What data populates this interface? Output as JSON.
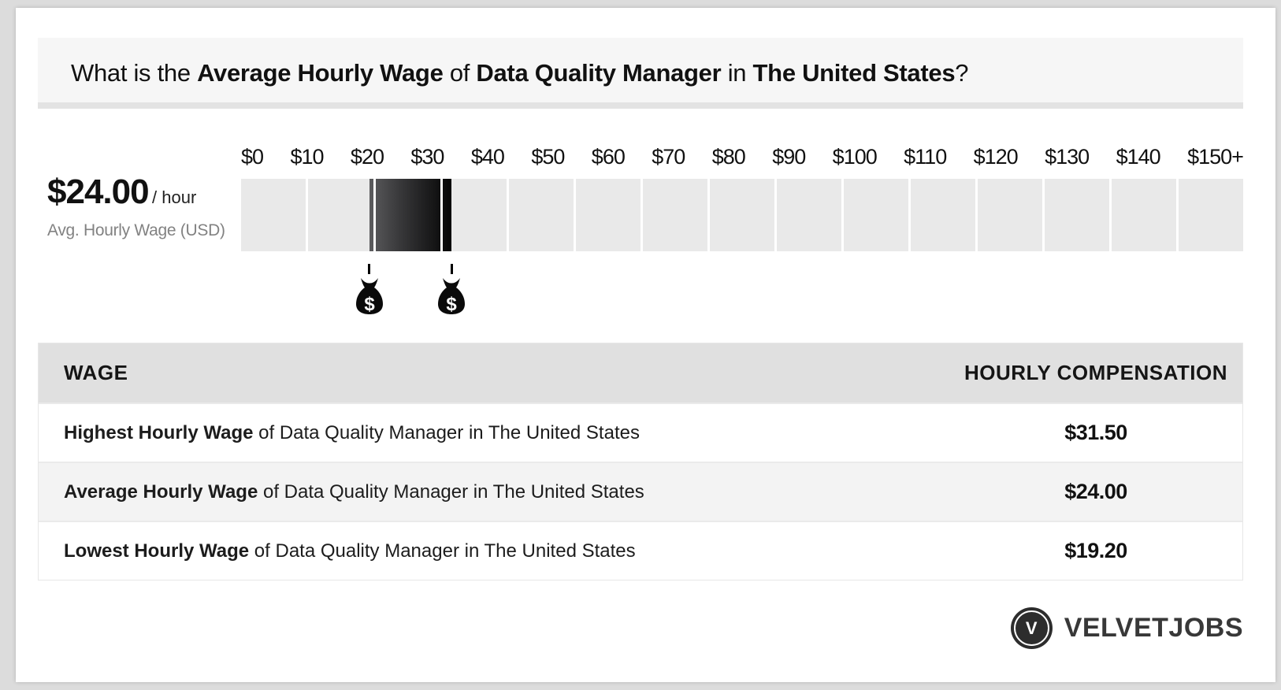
{
  "title": {
    "p1": "What is the ",
    "b1": "Average Hourly Wage",
    "p2": " of ",
    "b2": "Data Quality Manager",
    "p3": " in ",
    "b3": "The United States",
    "p4": "?"
  },
  "stat": {
    "value": "$24.00",
    "unit": "/ hour",
    "caption": "Avg. Hourly Wage (USD)"
  },
  "chart_data": {
    "type": "bar",
    "subtype": "horizontal-wage-range-gauge",
    "title": "Hourly wage range of Data Quality Manager in The United States",
    "axis_ticks": [
      "$0",
      "$10",
      "$20",
      "$30",
      "$40",
      "$50",
      "$60",
      "$70",
      "$80",
      "$90",
      "$100",
      "$110",
      "$120",
      "$130",
      "$140",
      "$150+"
    ],
    "axis_min": 0,
    "axis_max": 150,
    "segment_count": 15,
    "gridline_values": [
      20,
      30
    ],
    "lowest_wage": 19.2,
    "average_wage": 24.0,
    "highest_wage": 31.5,
    "marker_values": [
      19.2,
      31.5
    ],
    "marker_symbol": "$",
    "legend": "none",
    "track_color": "#e9e9e9",
    "range_gradient": [
      "#5c5c5e",
      "#050505"
    ]
  },
  "table": {
    "headers": [
      "WAGE",
      "HOURLY COMPENSATION"
    ],
    "rows": [
      {
        "lead": "Highest Hourly Wage",
        "rest": " of Data Quality Manager in The United States",
        "value": "$31.50"
      },
      {
        "lead": "Average Hourly Wage",
        "rest": " of Data Quality Manager in The United States",
        "value": "$24.00"
      },
      {
        "lead": "Lowest Hourly Wage",
        "rest": " of Data Quality Manager in The United States",
        "value": "$19.20"
      }
    ]
  },
  "logo": {
    "initial": "V",
    "text": "VELVETJOBS"
  },
  "colors": {
    "page_bg": "#dcdcdc",
    "card_bg": "#ffffff",
    "title_box_bg": "#f6f6f6",
    "title_box_border": "#e3e3e3",
    "header_row_bg": "#e0e0e0",
    "alt_row_bg": "#f3f3f3",
    "text": "#111111",
    "muted_text": "#828282"
  }
}
